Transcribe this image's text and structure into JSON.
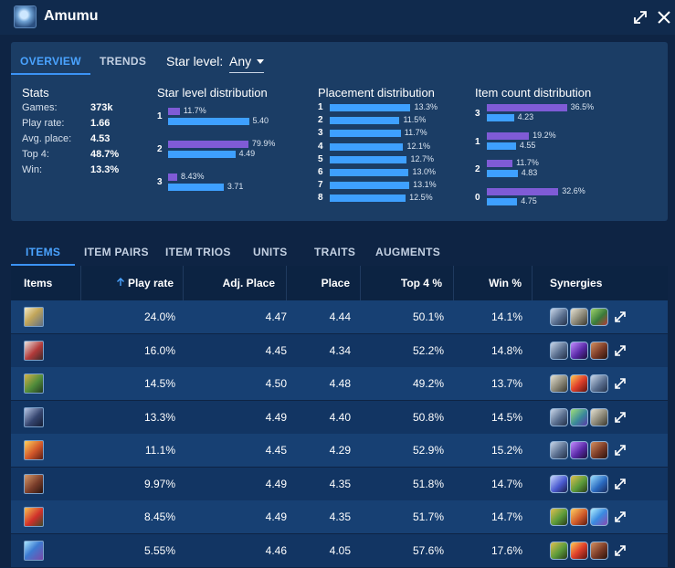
{
  "window": {
    "title": "Amumu"
  },
  "overview_tabs": [
    "OVERVIEW",
    "TRENDS"
  ],
  "star_filter": {
    "label": "Star level:",
    "value": "Any"
  },
  "stats": {
    "title": "Stats",
    "items": [
      {
        "label": "Games:",
        "value": "373k"
      },
      {
        "label": "Play rate:",
        "value": "1.66"
      },
      {
        "label": "Avg. place:",
        "value": "4.53"
      },
      {
        "label": "Top 4:",
        "value": "48.7%"
      },
      {
        "label": "Win:",
        "value": "13.3%"
      }
    ]
  },
  "star_dist": {
    "title": "Star level distribution",
    "rows": [
      {
        "label": "1",
        "pct": "11.7%",
        "pct_num": 11.7,
        "avg": "5.40",
        "avg_num": 5.4
      },
      {
        "label": "2",
        "pct": "79.9%",
        "pct_num": 79.9,
        "avg": "4.49",
        "avg_num": 4.49
      },
      {
        "label": "3",
        "pct": "8.43%",
        "pct_num": 8.43,
        "avg": "3.71",
        "avg_num": 3.71
      }
    ]
  },
  "placement_dist": {
    "title": "Placement distribution",
    "rows": [
      {
        "label": "1",
        "pct": "13.3%",
        "pct_num": 13.3
      },
      {
        "label": "2",
        "pct": "11.5%",
        "pct_num": 11.5
      },
      {
        "label": "3",
        "pct": "11.7%",
        "pct_num": 11.7
      },
      {
        "label": "4",
        "pct": "12.1%",
        "pct_num": 12.1
      },
      {
        "label": "5",
        "pct": "12.7%",
        "pct_num": 12.7
      },
      {
        "label": "6",
        "pct": "13.0%",
        "pct_num": 13.0
      },
      {
        "label": "7",
        "pct": "13.1%",
        "pct_num": 13.1
      },
      {
        "label": "8",
        "pct": "12.5%",
        "pct_num": 12.5
      }
    ]
  },
  "item_count_dist": {
    "title": "Item count distribution",
    "rows": [
      {
        "label": "3",
        "pct": "36.5%",
        "pct_num": 36.5,
        "avg": "4.23",
        "avg_num": 4.23
      },
      {
        "label": "1",
        "pct": "19.2%",
        "pct_num": 19.2,
        "avg": "4.55",
        "avg_num": 4.55
      },
      {
        "label": "2",
        "pct": "11.7%",
        "pct_num": 11.7,
        "avg": "4.83",
        "avg_num": 4.83
      },
      {
        "label": "0",
        "pct": "32.6%",
        "pct_num": 32.6,
        "avg": "4.75",
        "avg_num": 4.75
      }
    ]
  },
  "main_tabs": [
    "ITEMS",
    "ITEM PAIRS",
    "ITEM TRIOS",
    "UNITS",
    "TRAITS",
    "AUGMENTS"
  ],
  "table": {
    "headers": [
      "Items",
      "Play rate",
      "Adj. Place",
      "Place",
      "Top 4 %",
      "Win %",
      "Synergies"
    ],
    "rows": [
      {
        "icon": "silver-gold-item-icon",
        "play_rate": "24.0%",
        "adj_place": "4.47",
        "place": "4.44",
        "top4": "50.1%",
        "win": "14.1%",
        "synergies": [
          "armored-champion-icon",
          "stone-guardian-icon",
          "jungle-champion-icon"
        ]
      },
      {
        "icon": "red-blade-item-icon",
        "play_rate": "16.0%",
        "adj_place": "4.45",
        "place": "4.34",
        "top4": "52.2%",
        "win": "14.8%",
        "synergies": [
          "armored-champion-icon",
          "purple-mage-icon",
          "bronze-brawler-icon"
        ]
      },
      {
        "icon": "green-gold-item-icon",
        "play_rate": "14.5%",
        "adj_place": "4.50",
        "place": "4.48",
        "top4": "49.2%",
        "win": "13.7%",
        "synergies": [
          "stone-guardian-icon",
          "fire-orb-icon",
          "armored-champion-icon"
        ]
      },
      {
        "icon": "dark-spear-item-icon",
        "play_rate": "13.3%",
        "adj_place": "4.49",
        "place": "4.40",
        "top4": "50.8%",
        "win": "14.5%",
        "synergies": [
          "armored-champion-icon",
          "green-field-icon",
          "stone-guardian-icon"
        ]
      },
      {
        "icon": "fire-armor-item-icon",
        "play_rate": "11.1%",
        "adj_place": "4.45",
        "place": "4.29",
        "top4": "52.9%",
        "win": "15.2%",
        "synergies": [
          "armored-champion-icon",
          "purple-mage-icon",
          "bronze-brawler-icon"
        ]
      },
      {
        "icon": "bronze-mask-item-icon",
        "play_rate": "9.97%",
        "adj_place": "4.49",
        "place": "4.35",
        "top4": "51.8%",
        "win": "14.7%",
        "synergies": [
          "blue-spear-icon",
          "green-gold-icon",
          "blue-orb-icon"
        ]
      },
      {
        "icon": "red-gem-item-icon",
        "play_rate": "8.45%",
        "adj_place": "4.49",
        "place": "4.35",
        "top4": "51.7%",
        "win": "14.7%",
        "synergies": [
          "green-gold-icon",
          "fire-armor-icon",
          "blue-dragon-icon"
        ]
      },
      {
        "icon": "blue-dragon-item-icon",
        "play_rate": "5.55%",
        "adj_place": "4.46",
        "place": "4.05",
        "top4": "57.6%",
        "win": "17.6%",
        "synergies": [
          "green-gold-icon",
          "fire-orb-icon",
          "bronze-brawler-icon"
        ]
      }
    ]
  },
  "colors": {
    "accent": "#3b93f5",
    "bar_purple": "#7f5bd6",
    "bar_blue": "#3ea0ff",
    "background": "#0e2444",
    "panel": "#1b3d65"
  }
}
